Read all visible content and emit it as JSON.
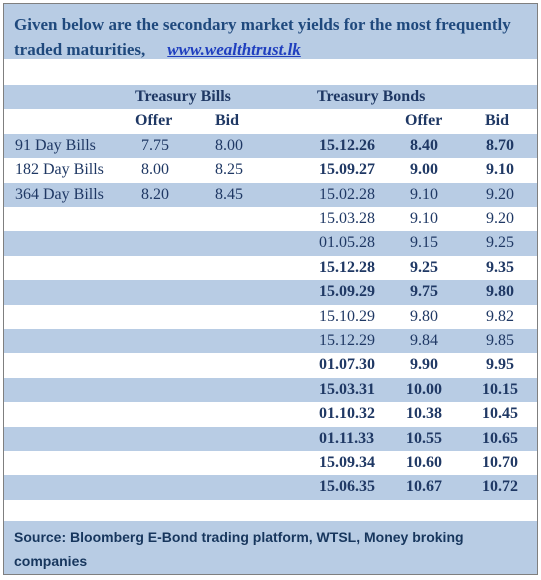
{
  "header": {
    "text": "Given below are the secondary market yields for the most frequently traded maturities,",
    "link": "www.wealthtrust.lk"
  },
  "table": {
    "groups": [
      "Treasury Bills",
      "Treasury Bonds"
    ],
    "columns": [
      "Offer",
      "Bid",
      "Offer",
      "Bid"
    ],
    "bills": [
      [
        "91 Day Bills",
        "7.75",
        "8.00"
      ],
      [
        "182 Day Bills",
        "8.00",
        "8.25"
      ],
      [
        "364 Day Bills",
        "8.20",
        "8.45"
      ]
    ],
    "bonds": [
      [
        "15.12.26",
        "8.40",
        "8.70"
      ],
      [
        "15.09.27",
        "9.00",
        "9.10"
      ],
      [
        "15.02.28",
        "9.10",
        "9.20"
      ],
      [
        "15.03.28",
        "9.10",
        "9.20"
      ],
      [
        "01.05.28",
        "9.15",
        "9.25"
      ],
      [
        "15.12.28",
        "9.25",
        "9.35"
      ],
      [
        "15.09.29",
        "9.75",
        "9.80"
      ],
      [
        "15.10.29",
        "9.80",
        "9.82"
      ],
      [
        "15.12.29",
        "9.84",
        "9.85"
      ],
      [
        "01.07.30",
        "9.90",
        "9.95"
      ],
      [
        "15.03.31",
        "10.00",
        "10.15"
      ],
      [
        "01.10.32",
        "10.38",
        "10.45"
      ],
      [
        "01.11.33",
        "10.55",
        "10.65"
      ],
      [
        "15.09.34",
        "10.60",
        "10.70"
      ],
      [
        "15.06.35",
        "10.67",
        "10.72"
      ]
    ]
  },
  "footer": "Source: Bloomberg E-Bond trading platform, WTSL, Money broking companies"
}
